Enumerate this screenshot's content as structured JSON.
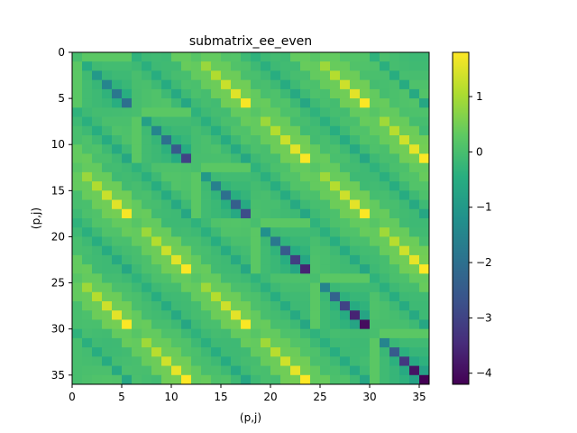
{
  "chart_data": {
    "type": "heatmap",
    "title": "submatrix_ee_even",
    "xlabel": "(p,j)",
    "ylabel": "(p,j)",
    "n": 36,
    "xlim": [
      0,
      36
    ],
    "ylim": [
      36,
      0
    ],
    "x_ticks": [
      0,
      5,
      10,
      15,
      20,
      25,
      30,
      35
    ],
    "y_ticks": [
      0,
      5,
      10,
      15,
      20,
      25,
      30,
      35
    ],
    "colormap": "viridis",
    "colorbar": {
      "vmin": -4.2,
      "vmax": 1.8,
      "ticks": [
        1,
        0,
        -1,
        -2,
        -3,
        -4
      ]
    },
    "description_of_values": "Symmetric banded matrix: strong negative main diagonal (down to about -4.2 near (34,34)), positive off-diagonals at offset 12 and 24 (up to about 1.8), near-zero background.",
    "diagonal_min_values": [
      0,
      -0.5,
      -1.0,
      -1.5,
      -1.8,
      -2.0,
      0,
      -0.8,
      -1.5,
      -2.0,
      -2.5,
      -3.0,
      0,
      -1.0,
      -1.6,
      -2.0,
      -2.4,
      -2.8,
      0,
      -1.2,
      -1.8,
      -2.5,
      -3.1,
      -3.6,
      0,
      -1.5,
      -2.3,
      -3.0,
      -3.6,
      -4.0,
      0,
      -1.5,
      -2.5,
      -3.2,
      -3.9,
      -4.2
    ]
  }
}
